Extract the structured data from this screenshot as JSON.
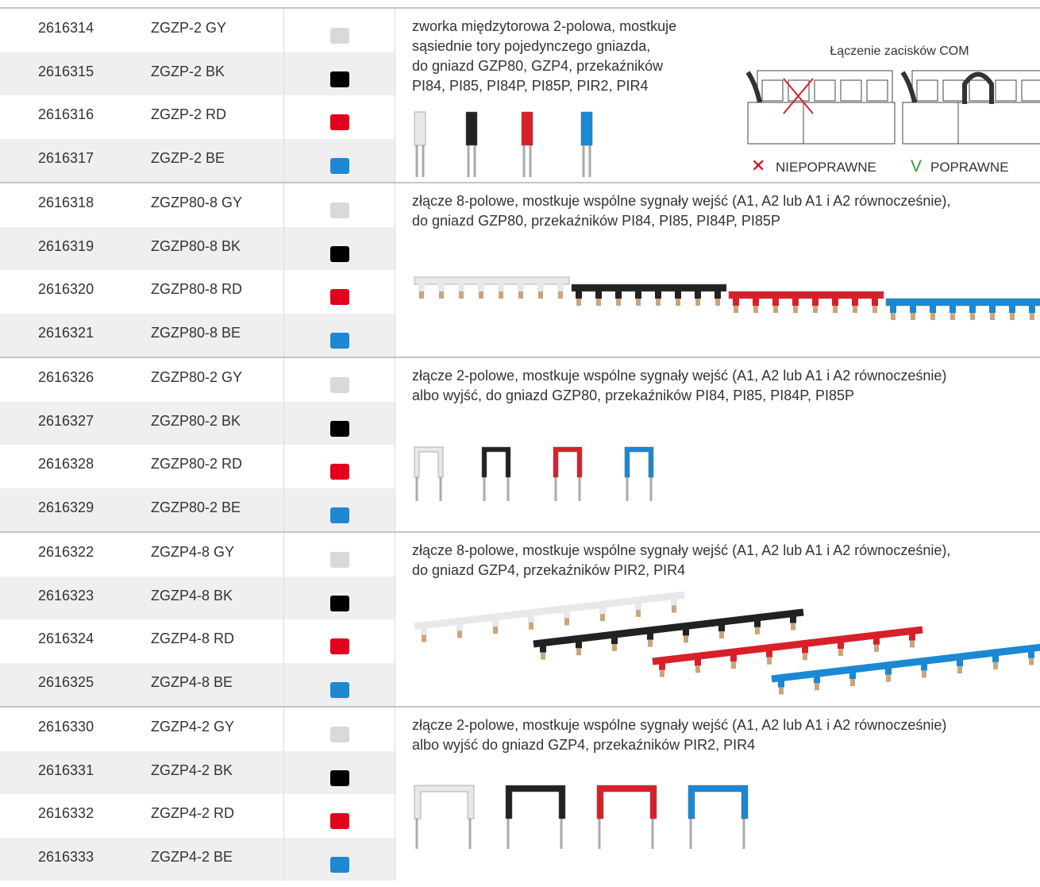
{
  "groups": [
    {
      "rows": [
        {
          "code": "2616314",
          "name": "ZGZP-2 GY",
          "swatch": "#d9d9d9"
        },
        {
          "code": "2616315",
          "name": "ZGZP-2 BK",
          "swatch": "#000000"
        },
        {
          "code": "2616316",
          "name": "ZGZP-2 RD",
          "swatch": "#e2001a"
        },
        {
          "code": "2616317",
          "name": "ZGZP-2 BE",
          "swatch": "#1e88d2"
        }
      ],
      "description": [
        "zworka międzytorowa 2-polowa, mostkuje",
        "sąsiednie tory pojedynczego gniazda,",
        "do gniazd GZP80, GZP4, przekaźników",
        "PI84, PI85, PI84P, PI85P, PIR2, PIR4"
      ]
    },
    {
      "rows": [
        {
          "code": "2616318",
          "name": "ZGZP80-8 GY",
          "swatch": "#d9d9d9"
        },
        {
          "code": "2616319",
          "name": "ZGZP80-8 BK",
          "swatch": "#000000"
        },
        {
          "code": "2616320",
          "name": "ZGZP80-8 RD",
          "swatch": "#e2001a"
        },
        {
          "code": "2616321",
          "name": "ZGZP80-8 BE",
          "swatch": "#1e88d2"
        }
      ],
      "description": [
        "złącze 8-polowe, mostkuje wspólne sygnały wejść (A1, A2 lub A1 i A2 równocześnie),",
        "do gniazd GZP80, przekaźników PI84, PI85, PI84P, PI85P"
      ]
    },
    {
      "rows": [
        {
          "code": "2616326",
          "name": "ZGZP80-2 GY",
          "swatch": "#d9d9d9"
        },
        {
          "code": "2616327",
          "name": "ZGZP80-2 BK",
          "swatch": "#000000"
        },
        {
          "code": "2616328",
          "name": "ZGZP80-2 RD",
          "swatch": "#e2001a"
        },
        {
          "code": "2616329",
          "name": "ZGZP80-2 BE",
          "swatch": "#1e88d2"
        }
      ],
      "description": [
        "złącze 2-polowe, mostkuje wspólne sygnały wejść (A1, A2 lub A1 i A2 równocześnie)",
        "albo wyjść, do gniazd GZP80, przekaźników PI84, PI85, PI84P, PI85P"
      ]
    },
    {
      "rows": [
        {
          "code": "2616322",
          "name": "ZGZP4-8 GY",
          "swatch": "#d9d9d9"
        },
        {
          "code": "2616323",
          "name": "ZGZP4-8 BK",
          "swatch": "#000000"
        },
        {
          "code": "2616324",
          "name": "ZGZP4-8 RD",
          "swatch": "#e2001a"
        },
        {
          "code": "2616325",
          "name": "ZGZP4-8 BE",
          "swatch": "#1e88d2"
        }
      ],
      "description": [
        "złącze 8-polowe, mostkuje wspólne sygnały wejść (A1, A2 lub A1 i A2 równocześnie),",
        "do gniazd GZP4, przekaźników PIR2, PIR4"
      ]
    },
    {
      "rows": [
        {
          "code": "2616330",
          "name": "ZGZP4-2 GY",
          "swatch": "#d9d9d9"
        },
        {
          "code": "2616331",
          "name": "ZGZP4-2 BK",
          "swatch": "#000000"
        },
        {
          "code": "2616332",
          "name": "ZGZP4-2 RD",
          "swatch": "#e2001a"
        },
        {
          "code": "2616333",
          "name": "ZGZP4-2 BE",
          "swatch": "#1e88d2"
        }
      ],
      "description": [
        "złącze 2-polowe, mostkuje wspólne sygnały wejść (A1, A2 lub A1 i A2 równocześnie)",
        "albo wyjść do gniazd GZP4, przekaźników PIR2, PIR4"
      ]
    }
  ],
  "com_diagram": {
    "title": "Łączenie zacisków COM",
    "incorrect_mark": "✕",
    "incorrect": "NIEPOPRAWNE",
    "correct_mark": "V",
    "correct": "POPRAWNE"
  }
}
